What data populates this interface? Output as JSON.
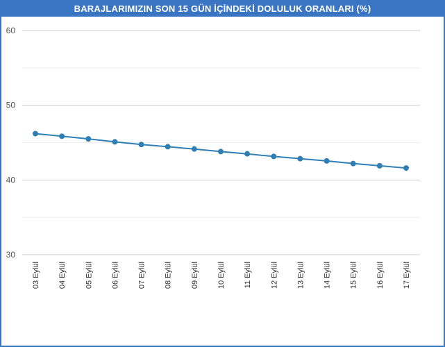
{
  "chart_data": {
    "type": "line",
    "title": "BARAJLARIMIZIN SON 15 GÜN İÇİNDEKİ DOLULUK ORANLARI (%)",
    "xlabel": "",
    "ylabel": "",
    "categories": [
      "03 Eylül",
      "04 Eylül",
      "05 Eylül",
      "06 Eylül",
      "07 Eylül",
      "08 Eylül",
      "09 Eylül",
      "10 Eylül",
      "11 Eylül",
      "12 Eylül",
      "13 Eylül",
      "14 Eylül",
      "15 Eylül",
      "16 Eylül",
      "17 Eylül"
    ],
    "series": [
      {
        "values": [
          46.2,
          45.85,
          45.5,
          45.1,
          44.75,
          44.45,
          44.15,
          43.8,
          43.5,
          43.15,
          42.85,
          42.55,
          42.2,
          41.9,
          41.6
        ],
        "color": "#2f7fb5"
      }
    ],
    "ylim": [
      30,
      60
    ],
    "yticks": [
      30,
      40,
      50,
      60
    ],
    "grid": true,
    "legend": "none",
    "colors": {
      "frame": "#3a75c4",
      "title_text": "#ffffff",
      "grid_major": "#cccccc",
      "grid_minor": "#eeeeee",
      "line": "#2f7fb5"
    }
  }
}
